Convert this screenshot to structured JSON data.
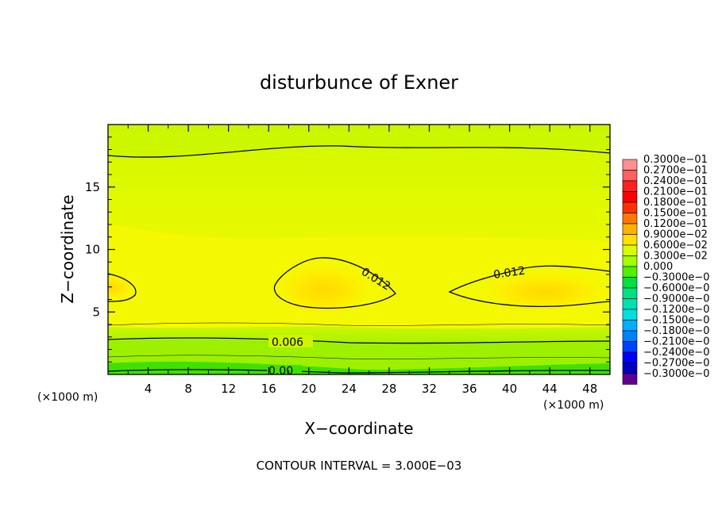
{
  "chart_data": {
    "type": "heatmap",
    "title": "disturbunce of Exner",
    "xlabel": "X−coordinate",
    "ylabel": "Z−coordinate",
    "x_unit": "(×1000 m)",
    "y_unit": "(×1000 m)",
    "xlim": [
      0,
      50
    ],
    "ylim": [
      0,
      20
    ],
    "x_ticks": [
      4,
      8,
      12,
      16,
      20,
      24,
      28,
      32,
      36,
      40,
      44,
      48
    ],
    "y_ticks": [
      5,
      10,
      15
    ],
    "contour_interval_text": "CONTOUR INTERVAL = 3.000E−03",
    "contour_labels": [
      "0.012",
      "0.012",
      "0.006",
      "0.00"
    ],
    "colorbar": {
      "labels": [
        "0.3000e−01",
        "0.2700e−01",
        "0.2400e−01",
        "0.2100e−01",
        "0.1800e−01",
        "0.1500e−01",
        "0.1200e−01",
        "0.9000e−02",
        "0.6000e−02",
        "0.3000e−02",
        "0.000",
        "−0.3000e−0",
        "−0.6000e−0",
        "−0.9000e−0",
        "−0.1200e−0",
        "−0.1500e−0",
        "−0.1800e−0",
        "−0.2100e−0",
        "−0.2400e−0",
        "−0.2700e−0",
        "−0.3000e−0"
      ],
      "colors": [
        "#ff9090",
        "#ff6060",
        "#ff2020",
        "#ff0000",
        "#ff3000",
        "#ff7800",
        "#ffb000",
        "#ffe000",
        "#d8ff00",
        "#a0ff00",
        "#50f000",
        "#00e040",
        "#00e080",
        "#00e0b0",
        "#00e0e0",
        "#00b0ff",
        "#0080ff",
        "#0040ff",
        "#0000ff",
        "#0000c0",
        "#600090"
      ]
    },
    "field_colors": {
      "level_00": "#2ee000",
      "level_03": "#7eec00",
      "level_06": "#b4f300",
      "level_09": "#d8fb00",
      "level_12": "#f4f800",
      "level_13": "#fbea00",
      "level_15": "#ffd800"
    }
  }
}
